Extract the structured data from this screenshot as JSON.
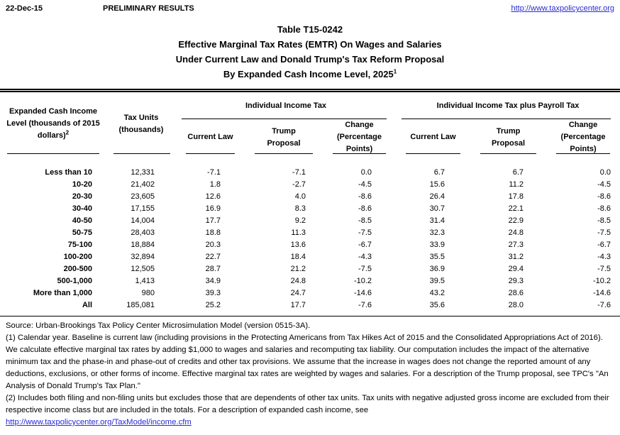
{
  "page": {
    "date": "22-Dec-15",
    "preliminary_label": "PRELIMINARY RESULTS",
    "site_link": "http://www.taxpolicycenter.org"
  },
  "title": {
    "line1": "Table T15-0242",
    "line2": "Effective Marginal Tax Rates (EMTR) On Wages and Salaries",
    "line3": "Under Current Law and Donald Trump's Tax Reform Proposal",
    "line4": "By Expanded Cash Income Level, 2025",
    "line4_superscript": "1"
  },
  "table": {
    "col1_header": "Expanded Cash Income Level (thousands of 2015 dollars)",
    "col1_superscript": "2",
    "col2_header": "Tax Units (thousands)",
    "group1_label": "Individual Income Tax",
    "group2_label": "Individual Income Tax plus Payroll Tax",
    "sub_headers": {
      "current_law": "Current Law",
      "trump_proposal": "Trump Proposal",
      "change": "Change (Percentage Points)"
    },
    "rows": [
      [
        "Less than 10",
        "12,331",
        "-7.1",
        "-7.1",
        "0.0",
        "6.7",
        "6.7",
        "0.0"
      ],
      [
        "10-20",
        "21,402",
        "1.8",
        "-2.7",
        "-4.5",
        "15.6",
        "11.2",
        "-4.5"
      ],
      [
        "20-30",
        "23,605",
        "12.6",
        "4.0",
        "-8.6",
        "26.4",
        "17.8",
        "-8.6"
      ],
      [
        "30-40",
        "17,155",
        "16.9",
        "8.3",
        "-8.6",
        "30.7",
        "22.1",
        "-8.6"
      ],
      [
        "40-50",
        "14,004",
        "17.7",
        "9.2",
        "-8.5",
        "31.4",
        "22.9",
        "-8.5"
      ],
      [
        "50-75",
        "28,403",
        "18.8",
        "11.3",
        "-7.5",
        "32.3",
        "24.8",
        "-7.5"
      ],
      [
        "75-100",
        "18,884",
        "20.3",
        "13.6",
        "-6.7",
        "33.9",
        "27.3",
        "-6.7"
      ],
      [
        "100-200",
        "32,894",
        "22.7",
        "18.4",
        "-4.3",
        "35.5",
        "31.2",
        "-4.3"
      ],
      [
        "200-500",
        "12,505",
        "28.7",
        "21.2",
        "-7.5",
        "36.9",
        "29.4",
        "-7.5"
      ],
      [
        "500-1,000",
        "1,413",
        "34.9",
        "24.8",
        "-10.2",
        "39.5",
        "29.3",
        "-10.2"
      ],
      [
        "More than 1,000",
        "980",
        "39.3",
        "24.7",
        "-14.6",
        "43.2",
        "28.6",
        "-14.6"
      ],
      [
        "All",
        "185,081",
        "25.2",
        "17.7",
        "-7.6",
        "35.6",
        "28.0",
        "-7.6"
      ]
    ]
  },
  "footnotes": {
    "source": "Source: Urban-Brookings Tax Policy Center Microsimulation Model (version 0515-3A).",
    "note1": "(1) Calendar year. Baseline is current law (including provisions in the Protecting Americans from Tax Hikes Act of 2015 and the Consolidated Appropriations Act of 2016). We calculate effective marginal tax rates by adding $1,000 to wages and salaries and recomputing tax liability. Our computation includes the impact of the alternative minimum tax and the phase-in and phase-out of credits and other tax provisions. We assume that the increase in wages does not change the reported amount of any deductions, exclusions, or other forms of income. Effective marginal tax rates are weighted by wages and salaries. For a description of the Trump proposal, see TPC's \"An Analysis of Donald Trump's Tax Plan.\"",
    "note2": "(2) Includes both filing and non-filing units but excludes those that are dependents of other tax units. Tax units with negative adjusted gross income are excluded from their respective income class but are included in the totals. For a description of expanded cash income, see",
    "link": "http://www.taxpolicycenter.org/TaxModel/income.cfm"
  },
  "colors": {
    "link_blue": "#2929d6",
    "text": "#000000"
  }
}
